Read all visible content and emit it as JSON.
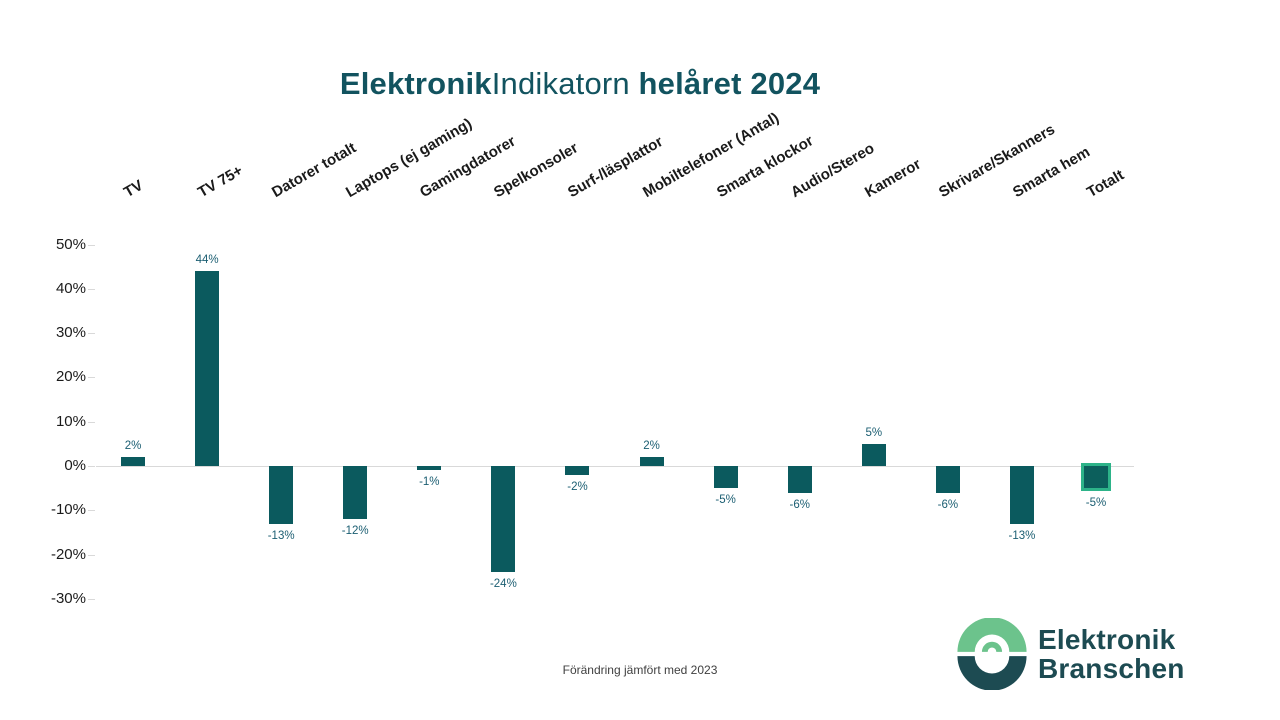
{
  "title": {
    "part1": "Elektronik",
    "part2": "Indikatorn",
    "part3": "helåret 2024"
  },
  "footer": {
    "caption": "Förändring jämfört med 2023"
  },
  "logo": {
    "icon": "elektronikbranschen-circle-mark",
    "line1": "Elektronik",
    "line2": "Branschen",
    "green": "#6cc38c",
    "dark_teal": "#1d4b52"
  },
  "colors": {
    "bar_fill": "#0b5a5e",
    "highlight_border": "#2db389",
    "title_text": "#12535f",
    "value_label_text": "#1b5e72",
    "category_text": "#1a1a1a",
    "axis_tick_text": "#1a1a1a",
    "axis_line": "#d9d9d9",
    "background": "#ffffff"
  },
  "chart_data": {
    "type": "bar",
    "title": "ElektronikIndikatorn helåret 2024",
    "caption": "Förändring jämfört med 2023",
    "xlabel": "",
    "ylabel": "",
    "ylim": [
      -30,
      50
    ],
    "grid": false,
    "legend": false,
    "categories": [
      "TV",
      "TV 75+",
      "Datorer totalt",
      "Laptops (ej gaming)",
      "Gamingdatorer",
      "Spelkonsoler",
      "Surf-/läsplattor",
      "Mobiltelefoner (Antal)",
      "Smarta klockor",
      "Audio/Stereo",
      "Kameror",
      "Skrivare/Skanners",
      "Smarta hem",
      "Totalt"
    ],
    "values": [
      2,
      44,
      -13,
      -12,
      -1,
      -24,
      -2,
      2,
      -5,
      -6,
      5,
      -6,
      -13,
      -5
    ],
    "value_labels": [
      "2%",
      "44%",
      "-13%",
      "-12%",
      "-1%",
      "-24%",
      "-2%",
      "2%",
      "-5%",
      "-6%",
      "5%",
      "-6%",
      "-13%",
      "-5%"
    ],
    "highlight_index": 13,
    "highlight_category": "Totalt",
    "yticks": [
      {
        "label": "50%",
        "value": 50
      },
      {
        "label": "40%",
        "value": 40
      },
      {
        "label": "30%",
        "value": 30
      },
      {
        "label": "20%",
        "value": 20
      },
      {
        "label": "10%",
        "value": 10
      },
      {
        "label": "0%",
        "value": 0
      },
      {
        "label": "-10%",
        "value": -10
      },
      {
        "label": "-20%",
        "value": -20
      },
      {
        "label": "-30%",
        "value": -30
      }
    ]
  }
}
